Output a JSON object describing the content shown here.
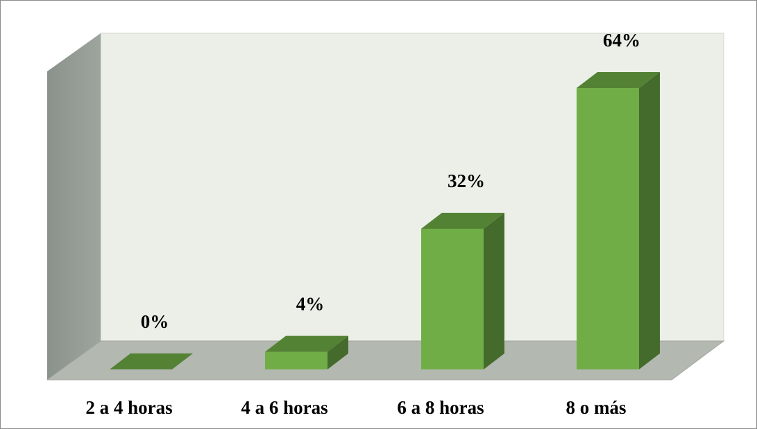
{
  "chart_data": {
    "type": "bar3d",
    "categories": [
      "2 a 4 horas",
      "4 a 6 horas",
      "6 a 8 horas",
      "8 o más"
    ],
    "values": [
      0,
      4,
      32,
      64
    ],
    "value_labels": [
      "0%",
      "4%",
      "32%",
      "64%"
    ],
    "color": "#70ad47"
  }
}
